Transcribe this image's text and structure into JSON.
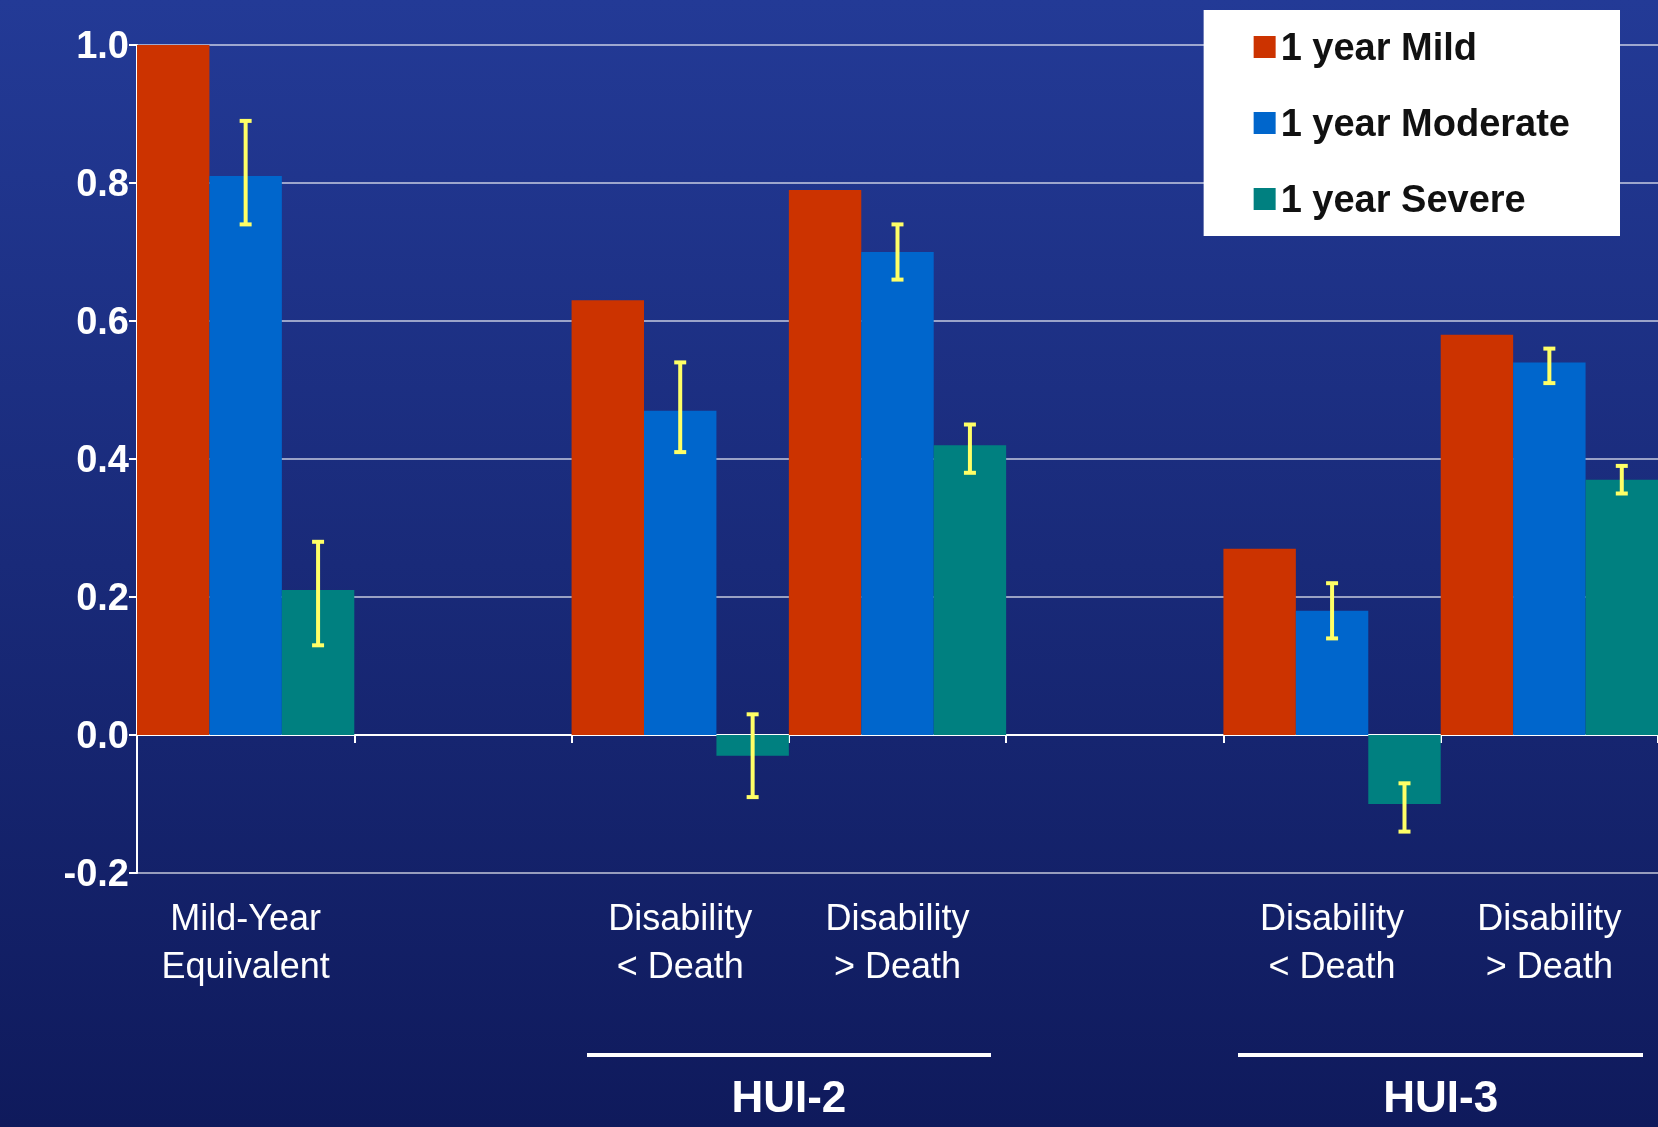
{
  "chart_data": {
    "type": "bar",
    "categories": [
      "Mild-Year\nEquivalent",
      null,
      "Disability\n< Death",
      "Disability\n> Death",
      null,
      "Disability\n< Death",
      "Disability\n> Death"
    ],
    "series": [
      {
        "name": "1 year Mild",
        "color": "#cc3300",
        "values": [
          1.0,
          null,
          0.63,
          0.79,
          null,
          0.27,
          0.58
        ]
      },
      {
        "name": "1 year Moderate",
        "color": "#0066cc",
        "values": [
          0.81,
          null,
          0.47,
          0.7,
          null,
          0.18,
          0.54
        ],
        "errors": [
          [
            0.74,
            0.89
          ],
          null,
          [
            0.41,
            0.54
          ],
          [
            0.66,
            0.74
          ],
          null,
          [
            0.14,
            0.22
          ],
          [
            0.51,
            0.56
          ]
        ]
      },
      {
        "name": "1 year Severe",
        "color": "#008080",
        "values": [
          0.21,
          null,
          -0.03,
          0.42,
          null,
          -0.1,
          0.37
        ],
        "errors": [
          [
            0.13,
            0.28
          ],
          null,
          [
            -0.09,
            0.03
          ],
          [
            0.38,
            0.45
          ],
          null,
          [
            -0.14,
            -0.07
          ],
          [
            0.35,
            0.39
          ]
        ]
      }
    ],
    "ylim": [
      -0.2,
      1.0
    ],
    "yticks": [
      {
        "value": -0.2,
        "label": "-0.2"
      },
      {
        "value": 0,
        "label": "0.0"
      },
      {
        "value": 0.2,
        "label": "0.2"
      },
      {
        "value": 0.4,
        "label": "0.4"
      },
      {
        "value": 0.6,
        "label": "0.6"
      },
      {
        "value": 0.8,
        "label": "0.8"
      },
      {
        "value": 1.0,
        "label": "1.0"
      }
    ],
    "grid": "y",
    "legend": "top right",
    "annotations": [
      "HUI-2",
      "HUI-3"
    ]
  }
}
